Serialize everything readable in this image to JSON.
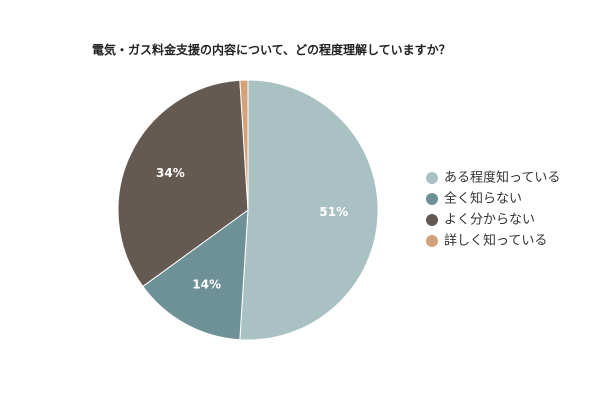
{
  "chart_data": {
    "type": "pie",
    "title": "電気・ガス料金支援の内容について、どの程度理解していますか？",
    "legend_position": "right",
    "slices": [
      {
        "label": "ある程度知っている",
        "value": 51,
        "display": "51%",
        "color": "#a9c1c2"
      },
      {
        "label": "全く知らない",
        "value": 14,
        "display": "14%",
        "color": "#6e9097"
      },
      {
        "label": "よく分からない",
        "value": 34,
        "display": "34%",
        "color": "#645a52"
      },
      {
        "label": "詳しく知っている",
        "value": 1,
        "display": "",
        "color": "#d4a27a"
      }
    ]
  }
}
